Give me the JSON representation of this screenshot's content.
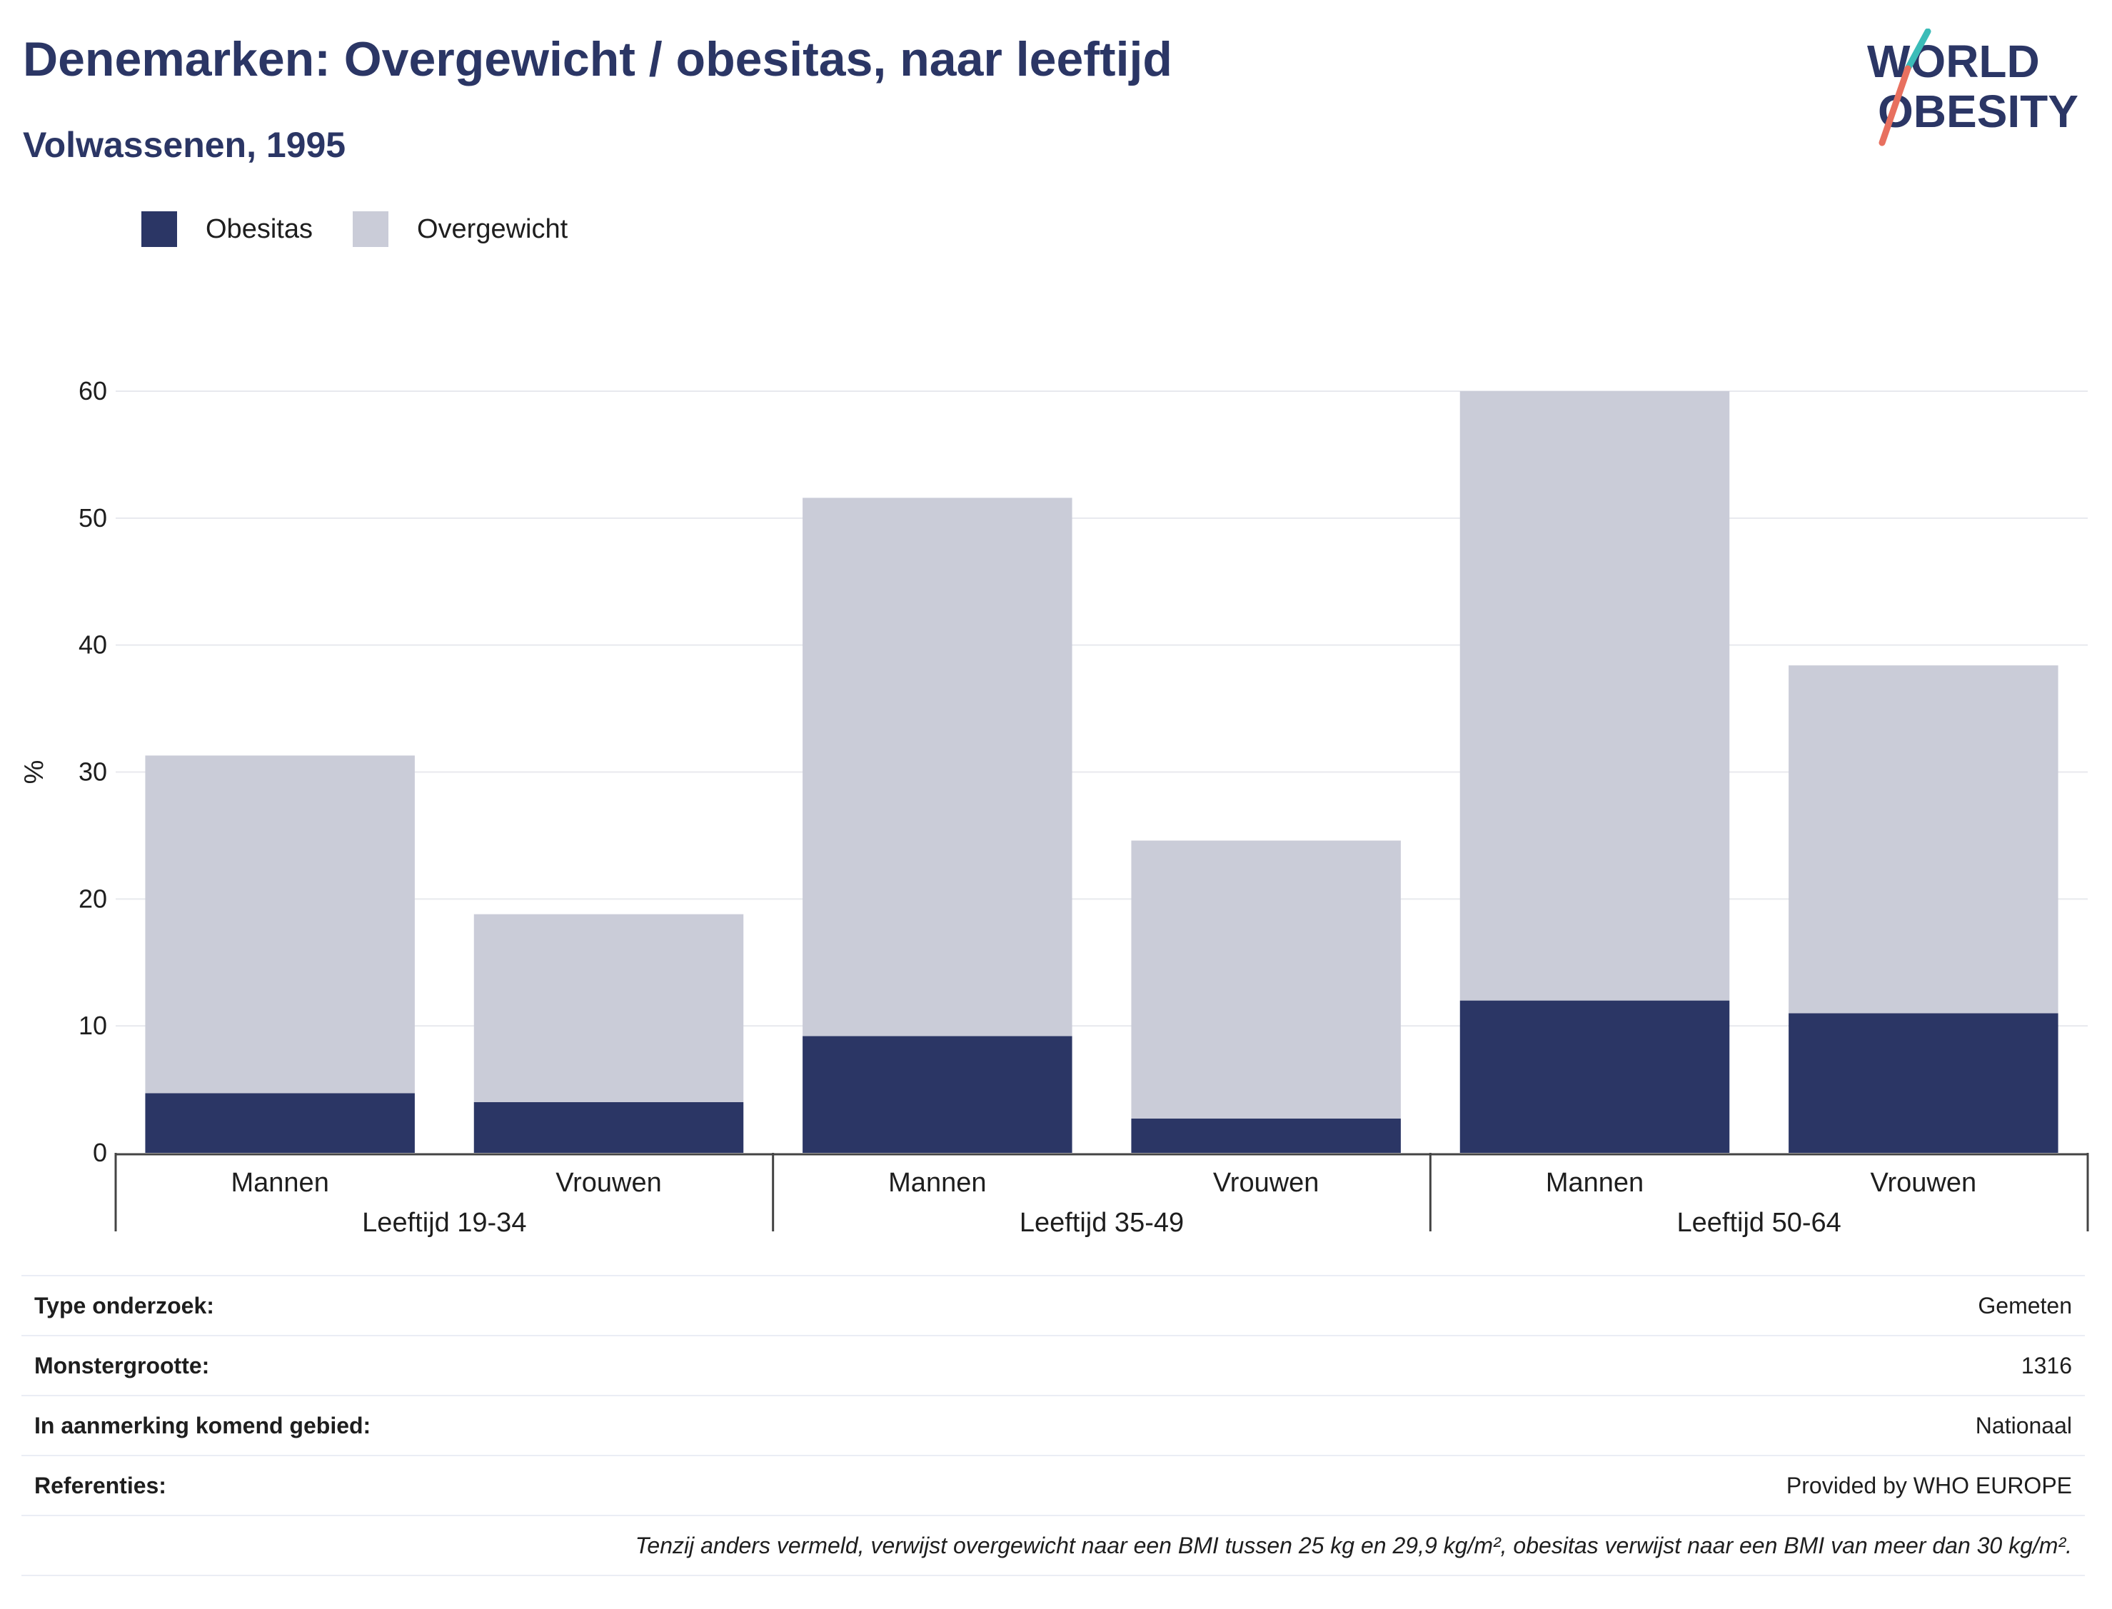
{
  "header": {
    "title": "Denemarken: Overgewicht / obesitas, naar leeftijd",
    "subtitle": "Volwassenen, 1995"
  },
  "logo": {
    "line1": "WORLD",
    "line2": "OBESITY"
  },
  "legend": [
    {
      "label": "Obesitas",
      "color": "#2b3665"
    },
    {
      "label": "Overgewicht",
      "color": "#caccd8"
    }
  ],
  "chart_data": {
    "type": "bar",
    "stacked": true,
    "ylabel": "%",
    "ylim": [
      0,
      60
    ],
    "yticks": [
      0,
      10,
      20,
      30,
      40,
      50,
      60
    ],
    "grid": true,
    "legend_position": "top-left",
    "groups": [
      "Leeftijd 19-34",
      "Leeftijd 35-49",
      "Leeftijd 50-64"
    ],
    "categories": [
      "Mannen",
      "Vrouwen",
      "Mannen",
      "Vrouwen",
      "Mannen",
      "Vrouwen"
    ],
    "series": [
      {
        "name": "Obesitas",
        "color": "#2b3665",
        "values": [
          4.7,
          4.0,
          9.2,
          2.7,
          12.0,
          11.0
        ]
      },
      {
        "name": "Overgewicht",
        "color": "#caccd8",
        "values": [
          26.6,
          14.8,
          42.4,
          21.9,
          48.0,
          27.4
        ]
      }
    ]
  },
  "info": {
    "rows": [
      {
        "key": "Type onderzoek:",
        "value": "Gemeten"
      },
      {
        "key": "Monstergrootte:",
        "value": "1316"
      },
      {
        "key": "In aanmerking komend gebied:",
        "value": "Nationaal"
      },
      {
        "key": "Referenties:",
        "value": "Provided by WHO EUROPE"
      }
    ],
    "note": "Tenzij anders vermeld, verwijst overgewicht naar een BMI tussen 25 kg en 29,9 kg/m², obesitas verwijst naar een BMI van meer dan 30 kg/m²."
  }
}
